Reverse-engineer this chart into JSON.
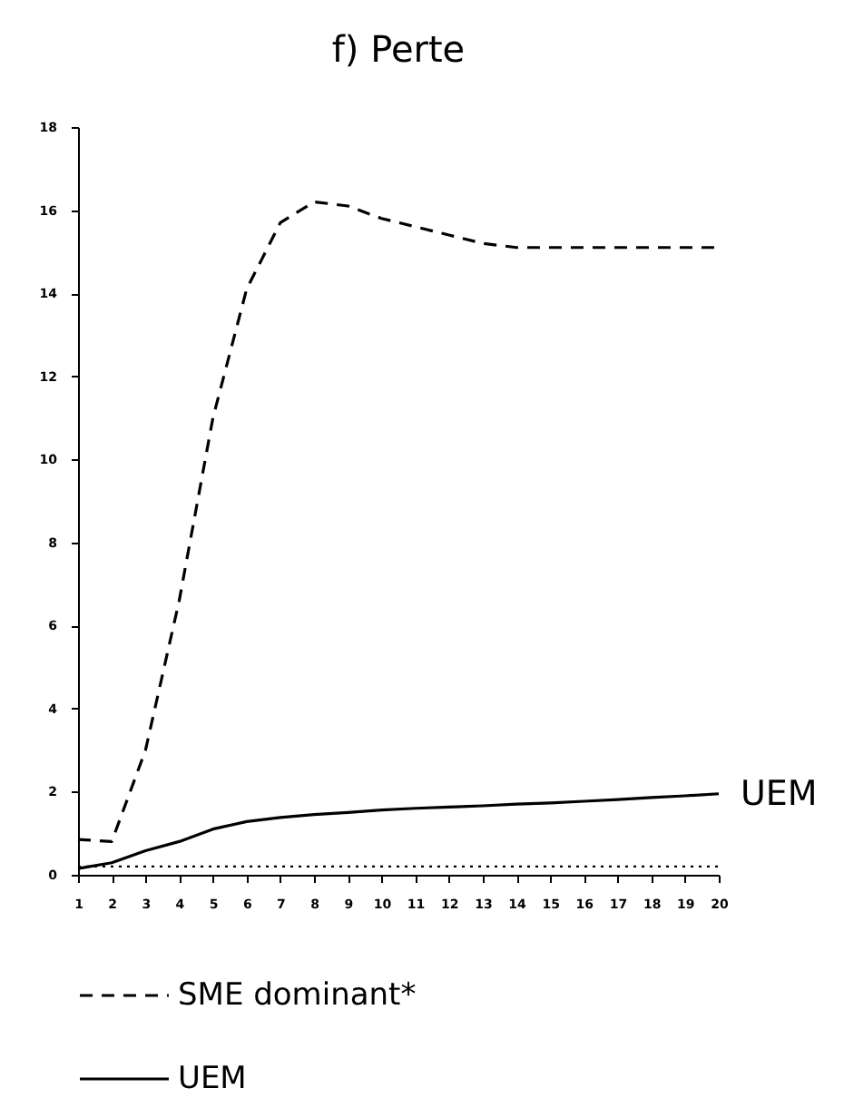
{
  "chart_data": {
    "type": "line",
    "title": "f) Perte",
    "x": [
      1,
      2,
      3,
      4,
      5,
      6,
      7,
      8,
      9,
      10,
      11,
      12,
      13,
      14,
      15,
      16,
      17,
      18,
      19,
      20
    ],
    "series": [
      {
        "name": "SME dominant*",
        "color": "#000000",
        "line_style": "dashed",
        "values": [
          0.85,
          0.8,
          3.0,
          6.6,
          11.0,
          14.1,
          15.7,
          16.2,
          16.1,
          15.8,
          15.6,
          15.4,
          15.2,
          15.1,
          15.1,
          15.1,
          15.1,
          15.1,
          15.1,
          15.1
        ]
      },
      {
        "name": "UEM",
        "color": "#000000",
        "line_style": "solid",
        "values": [
          0.15,
          0.29,
          0.58,
          0.8,
          1.1,
          1.28,
          1.38,
          1.45,
          1.5,
          1.56,
          1.6,
          1.63,
          1.66,
          1.7,
          1.73,
          1.77,
          1.81,
          1.86,
          1.9,
          1.95
        ]
      },
      {
        "color": "#000000",
        "line_style": "dotted",
        "values": [
          0.2,
          0.2,
          0.2,
          0.2,
          0.2,
          0.2,
          0.2,
          0.2,
          0.2,
          0.2,
          0.2,
          0.2,
          0.2,
          0.2,
          0.2,
          0.2,
          0.2,
          0.2,
          0.2,
          0.2
        ]
      }
    ],
    "annotations": [
      {
        "text": "UEM",
        "x": 20,
        "y": 1.95
      }
    ],
    "xlim": [
      1,
      20
    ],
    "xticks": [
      1,
      2,
      3,
      4,
      5,
      6,
      7,
      8,
      9,
      10,
      11,
      12,
      13,
      14,
      15,
      16,
      17,
      18,
      19,
      20
    ],
    "ylim": [
      0,
      18
    ],
    "yticks": [
      0,
      2,
      4,
      6,
      8,
      10,
      12,
      14,
      16,
      18
    ],
    "grid": false,
    "legend": "bottom",
    "marker": "none"
  }
}
